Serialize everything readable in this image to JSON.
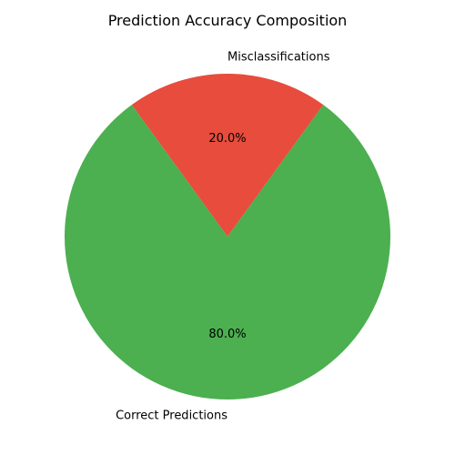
{
  "chart_data": {
    "type": "pie",
    "title": "Prediction Accuracy Composition",
    "categories": [
      "Misclassifications",
      "Correct Predictions"
    ],
    "values": [
      20.0,
      80.0
    ],
    "percent_labels": [
      "20.0%",
      "80.0%"
    ],
    "colors": [
      "#e74c3c",
      "#4caf50"
    ],
    "start_angle_deg": 54,
    "direction": "counterclockwise"
  }
}
